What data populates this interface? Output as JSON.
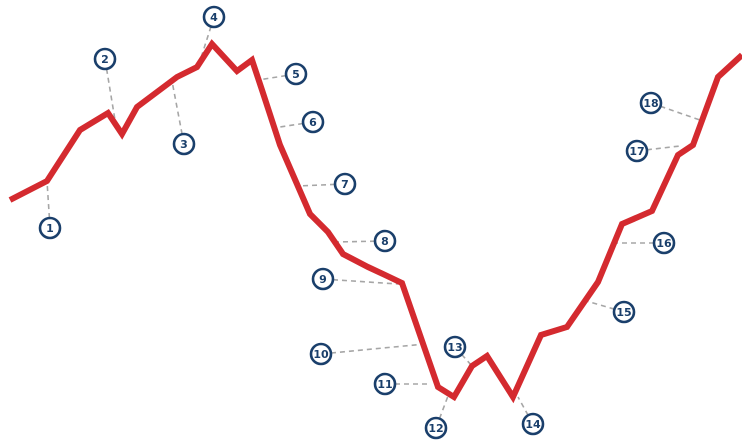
{
  "colors": {
    "line": "#d42a2f",
    "badge_stroke": "#1a3f6b",
    "badge_text": "#1a3f6b",
    "leader": "#a6a6a6",
    "background": "#ffffff"
  },
  "chart_data": {
    "type": "line",
    "title": "",
    "xlabel": "",
    "ylabel": "",
    "grid": false,
    "legend": "none",
    "x_range": [
      0,
      742
    ],
    "y_range": [
      0,
      443
    ],
    "series": [
      {
        "points": [
          [
            10,
            200
          ],
          [
            47,
            181
          ],
          [
            80,
            130
          ],
          [
            108,
            113
          ],
          [
            122,
            134
          ],
          [
            137,
            107
          ],
          [
            177,
            77
          ],
          [
            197,
            67
          ],
          [
            212,
            44
          ],
          [
            237,
            71
          ],
          [
            252,
            60
          ],
          [
            262,
            90
          ],
          [
            280,
            145
          ],
          [
            310,
            214
          ],
          [
            328,
            232
          ],
          [
            343,
            254
          ],
          [
            368,
            267
          ],
          [
            402,
            283
          ],
          [
            438,
            387
          ],
          [
            454,
            397
          ],
          [
            472,
            366
          ],
          [
            487,
            356
          ],
          [
            513,
            397
          ],
          [
            541,
            335
          ],
          [
            567,
            327
          ],
          [
            598,
            282
          ],
          [
            622,
            224
          ],
          [
            652,
            211
          ],
          [
            678,
            155
          ],
          [
            693,
            145
          ],
          [
            718,
            77
          ],
          [
            742,
            55
          ]
        ]
      }
    ],
    "annotations": [
      {
        "label": "1",
        "target": [
          47,
          181
        ]
      },
      {
        "label": "2",
        "target": [
          115,
          120
        ]
      },
      {
        "label": "3",
        "target": [
          172,
          81
        ]
      },
      {
        "label": "4",
        "target": [
          199,
          64
        ]
      },
      {
        "label": "5",
        "target": [
          258,
          80
        ]
      },
      {
        "label": "6",
        "target": [
          273,
          128
        ]
      },
      {
        "label": "7",
        "target": [
          297,
          186
        ]
      },
      {
        "label": "8",
        "target": [
          335,
          242
        ]
      },
      {
        "label": "9",
        "target": [
          398,
          284
        ]
      },
      {
        "label": "10",
        "target": [
          425,
          344
        ]
      },
      {
        "label": "11",
        "target": [
          430,
          384
        ]
      },
      {
        "label": "12",
        "target": [
          448,
          396
        ]
      },
      {
        "label": "13",
        "target": [
          472,
          366
        ]
      },
      {
        "label": "14",
        "target": [
          518,
          397
        ]
      },
      {
        "label": "15",
        "target": [
          583,
          300
        ]
      },
      {
        "label": "16",
        "target": [
          616,
          243
        ]
      },
      {
        "label": "17",
        "target": [
          680,
          146
        ]
      },
      {
        "label": "18",
        "target": [
          700,
          120
        ]
      }
    ]
  }
}
